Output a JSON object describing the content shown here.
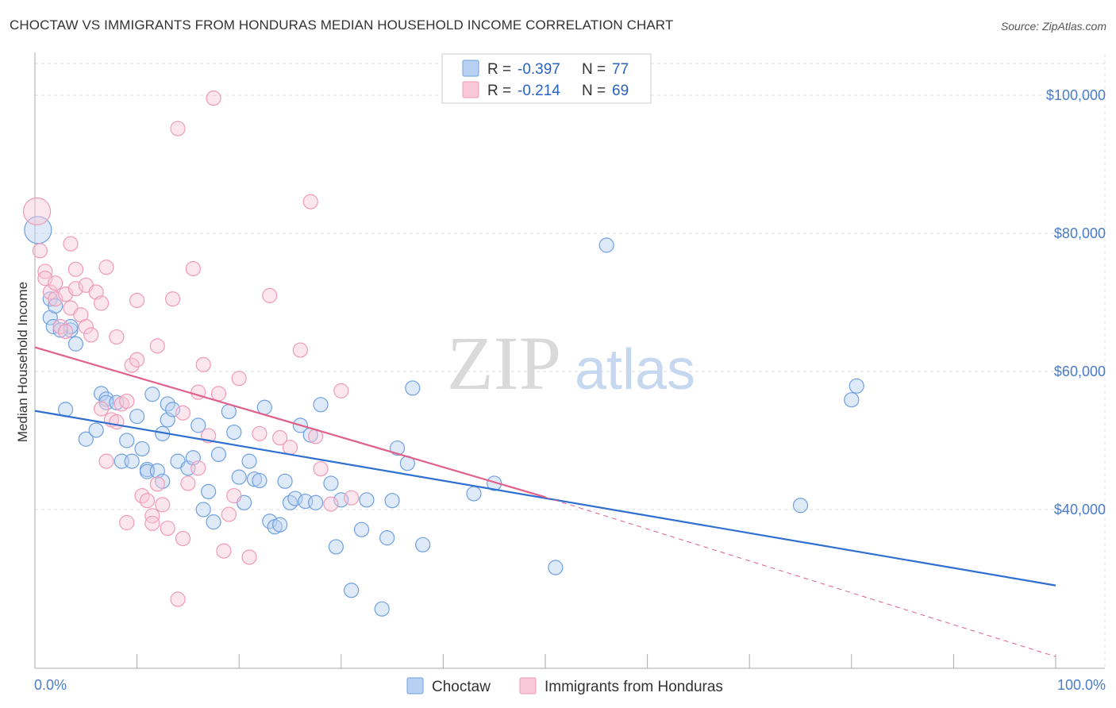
{
  "header": {
    "title": "CHOCTAW VS IMMIGRANTS FROM HONDURAS MEDIAN HOUSEHOLD INCOME CORRELATION CHART",
    "source": "Source: ZipAtlas.com"
  },
  "watermark": {
    "zip": "ZIP",
    "atlas": "atlas"
  },
  "chart_data": {
    "type": "scatter",
    "ylabel": "Median Household Income",
    "xlim": [
      0,
      100
    ],
    "ylim": [
      17000,
      106000
    ],
    "x_tick_labels": [
      "0.0%",
      "100.0%"
    ],
    "y_ticks": [
      {
        "value": 40000,
        "label": "$40,000"
      },
      {
        "value": 60000,
        "label": "$60,000"
      },
      {
        "value": 80000,
        "label": "$80,000"
      },
      {
        "value": 100000,
        "label": "$100,000"
      }
    ],
    "grid": true,
    "legend_position": "top-center",
    "series": [
      {
        "name": "Choctaw",
        "color": "#6fa0e0",
        "fill": "#b8d0f2",
        "line_color": "#2f6fd0",
        "R": "-0.397",
        "N": "77",
        "trend": {
          "x0": 0,
          "y0": 54300,
          "x1": 100,
          "y1": 29000
        },
        "points": [
          [
            0.3,
            80500
          ],
          [
            1.5,
            70500
          ],
          [
            1.5,
            67800
          ],
          [
            2,
            69500
          ],
          [
            3.5,
            66000
          ],
          [
            3.5,
            66500
          ],
          [
            4,
            64000
          ],
          [
            3,
            54500
          ],
          [
            5,
            50200
          ],
          [
            6,
            51500
          ],
          [
            6.5,
            56800
          ],
          [
            7,
            56000
          ],
          [
            7,
            55500
          ],
          [
            8,
            55500
          ],
          [
            8.5,
            47000
          ],
          [
            9,
            50000
          ],
          [
            9.5,
            47000
          ],
          [
            10,
            53500
          ],
          [
            10.5,
            48800
          ],
          [
            11,
            45800
          ],
          [
            11,
            45500
          ],
          [
            11.5,
            56700
          ],
          [
            12,
            45600
          ],
          [
            12.5,
            44100
          ],
          [
            12.5,
            51000
          ],
          [
            13,
            55300
          ],
          [
            13,
            53000
          ],
          [
            13.5,
            54500
          ],
          [
            14,
            47000
          ],
          [
            15,
            46000
          ],
          [
            15.5,
            47500
          ],
          [
            16,
            52200
          ],
          [
            16.5,
            40000
          ],
          [
            17,
            42600
          ],
          [
            17.5,
            38200
          ],
          [
            18,
            48000
          ],
          [
            19,
            54200
          ],
          [
            19.5,
            51200
          ],
          [
            20,
            44700
          ],
          [
            20.5,
            41000
          ],
          [
            21,
            47000
          ],
          [
            21.5,
            44400
          ],
          [
            22,
            44200
          ],
          [
            22.5,
            54800
          ],
          [
            23,
            38300
          ],
          [
            23.5,
            37500
          ],
          [
            24,
            37800
          ],
          [
            24.5,
            44100
          ],
          [
            25,
            41000
          ],
          [
            25.5,
            41600
          ],
          [
            26,
            52200
          ],
          [
            26.5,
            41200
          ],
          [
            27,
            50800
          ],
          [
            27.5,
            41000
          ],
          [
            28,
            55200
          ],
          [
            29,
            43800
          ],
          [
            29.5,
            34600
          ],
          [
            30,
            41400
          ],
          [
            31,
            28300
          ],
          [
            32,
            37100
          ],
          [
            32.5,
            41400
          ],
          [
            34,
            25600
          ],
          [
            34.5,
            35900
          ],
          [
            35,
            41300
          ],
          [
            35.5,
            48900
          ],
          [
            36.5,
            46700
          ],
          [
            37,
            57600
          ],
          [
            38,
            34900
          ],
          [
            43,
            42300
          ],
          [
            45,
            43800
          ],
          [
            51,
            31600
          ],
          [
            56,
            78300
          ],
          [
            75,
            40600
          ],
          [
            80,
            55900
          ],
          [
            80.5,
            57900
          ],
          [
            1.8,
            66500
          ],
          [
            2.5,
            66000
          ]
        ]
      },
      {
        "name": "Immigrants from Honduras",
        "color": "#f09ab8",
        "fill": "#f8c8d8",
        "line_color": "#e0608a",
        "R": "-0.214",
        "N": "69",
        "trend": {
          "x0": 0,
          "y0": 63500,
          "x1": 50,
          "y1": 41800
        },
        "trend_dashed": {
          "x0": 50,
          "y0": 41800,
          "x1": 100,
          "y1": 18700
        },
        "points": [
          [
            0.2,
            83200
          ],
          [
            0.5,
            77500
          ],
          [
            1,
            74500
          ],
          [
            1,
            73500
          ],
          [
            1.5,
            71500
          ],
          [
            2,
            72800
          ],
          [
            2,
            70500
          ],
          [
            2.5,
            66500
          ],
          [
            3,
            65800
          ],
          [
            3,
            71200
          ],
          [
            3.5,
            78500
          ],
          [
            3.5,
            69200
          ],
          [
            4,
            74800
          ],
          [
            4,
            72000
          ],
          [
            4.5,
            68200
          ],
          [
            5,
            72500
          ],
          [
            5,
            66500
          ],
          [
            5.5,
            65300
          ],
          [
            6,
            71500
          ],
          [
            6.5,
            69900
          ],
          [
            6.5,
            54600
          ],
          [
            7,
            75100
          ],
          [
            7,
            47000
          ],
          [
            7.5,
            53000
          ],
          [
            8,
            52700
          ],
          [
            8,
            65000
          ],
          [
            8.5,
            55300
          ],
          [
            9,
            55700
          ],
          [
            9,
            38100
          ],
          [
            9.5,
            60900
          ],
          [
            10,
            70300
          ],
          [
            10,
            61700
          ],
          [
            10.5,
            42000
          ],
          [
            11,
            41300
          ],
          [
            11.5,
            39100
          ],
          [
            11.5,
            38000
          ],
          [
            12,
            43700
          ],
          [
            12,
            63700
          ],
          [
            12.5,
            40700
          ],
          [
            13,
            37300
          ],
          [
            13.5,
            70500
          ],
          [
            14,
            95200
          ],
          [
            14,
            27000
          ],
          [
            14.5,
            54000
          ],
          [
            14.5,
            35800
          ],
          [
            15,
            43800
          ],
          [
            15.5,
            74900
          ],
          [
            16,
            57000
          ],
          [
            16,
            46000
          ],
          [
            16.5,
            61000
          ],
          [
            17,
            50700
          ],
          [
            17.5,
            99600
          ],
          [
            18,
            56800
          ],
          [
            18.5,
            34000
          ],
          [
            19,
            39300
          ],
          [
            19.5,
            42000
          ],
          [
            20,
            59000
          ],
          [
            21,
            33100
          ],
          [
            22,
            51000
          ],
          [
            23,
            71000
          ],
          [
            24,
            50400
          ],
          [
            25,
            49000
          ],
          [
            26,
            63100
          ],
          [
            27,
            84600
          ],
          [
            27.5,
            50600
          ],
          [
            28,
            45900
          ],
          [
            29,
            40800
          ],
          [
            30,
            57200
          ],
          [
            31,
            41700
          ]
        ]
      }
    ]
  },
  "legend": {
    "r_label": "R =",
    "n_label": "N ="
  }
}
